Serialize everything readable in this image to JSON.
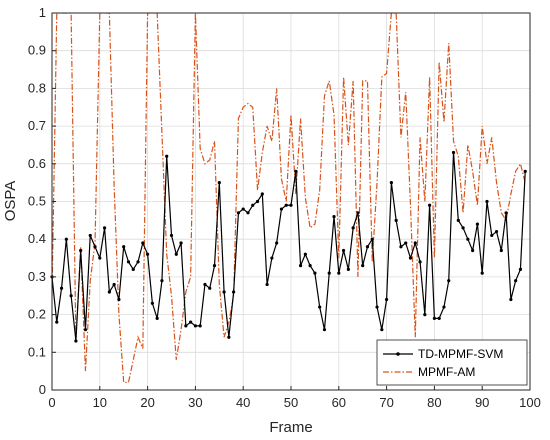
{
  "chart_data": {
    "type": "line",
    "title": "",
    "xlabel": "Frame",
    "ylabel": "OSPA",
    "xlim": [
      0,
      100
    ],
    "ylim": [
      0,
      1
    ],
    "xticks": [
      0,
      10,
      20,
      30,
      40,
      50,
      60,
      70,
      80,
      90,
      100
    ],
    "yticks": [
      0,
      0.1,
      0.2,
      0.3,
      0.4,
      0.5,
      0.6,
      0.7,
      0.8,
      0.9,
      1
    ],
    "grid": true,
    "legend_position": "bottom-right",
    "series": [
      {
        "name": "TD-MPMF-SVM",
        "color": "#000000",
        "style": "solid-dot",
        "x": [
          0,
          1,
          2,
          3,
          4,
          5,
          6,
          7,
          8,
          9,
          10,
          11,
          12,
          13,
          14,
          15,
          16,
          17,
          18,
          19,
          20,
          21,
          22,
          23,
          24,
          25,
          26,
          27,
          28,
          29,
          30,
          31,
          32,
          33,
          34,
          35,
          36,
          37,
          38,
          39,
          40,
          41,
          42,
          43,
          44,
          45,
          46,
          47,
          48,
          49,
          50,
          51,
          52,
          53,
          54,
          55,
          56,
          57,
          58,
          59,
          60,
          61,
          62,
          63,
          64,
          65,
          66,
          67,
          68,
          69,
          70,
          71,
          72,
          73,
          74,
          75,
          76,
          77,
          78,
          79,
          80,
          81,
          82,
          83,
          84,
          85,
          86,
          87,
          88,
          89,
          90,
          91,
          92,
          93,
          94,
          95,
          96,
          97,
          98,
          99
        ],
        "y": [
          0.3,
          0.18,
          0.27,
          0.4,
          0.25,
          0.13,
          0.37,
          0.16,
          0.41,
          0.38,
          0.35,
          0.43,
          0.26,
          0.28,
          0.24,
          0.38,
          0.34,
          0.32,
          0.34,
          0.39,
          0.36,
          0.23,
          0.19,
          0.29,
          0.62,
          0.41,
          0.36,
          0.39,
          0.17,
          0.18,
          0.17,
          0.17,
          0.28,
          0.27,
          0.33,
          0.55,
          0.26,
          0.14,
          0.26,
          0.47,
          0.48,
          0.47,
          0.49,
          0.5,
          0.52,
          0.28,
          0.35,
          0.39,
          0.48,
          0.49,
          0.49,
          0.58,
          0.33,
          0.36,
          0.33,
          0.31,
          0.22,
          0.16,
          0.31,
          0.46,
          0.31,
          0.37,
          0.32,
          0.43,
          0.47,
          0.33,
          0.38,
          0.4,
          0.22,
          0.16,
          0.24,
          0.55,
          0.45,
          0.38,
          0.39,
          0.35,
          0.39,
          0.34,
          0.2,
          0.49,
          0.19,
          0.19,
          0.22,
          0.29,
          0.63,
          0.45,
          0.43,
          0.4,
          0.37,
          0.44,
          0.31,
          0.5,
          0.41,
          0.42,
          0.37,
          0.47,
          0.24,
          0.29,
          0.32,
          0.58
        ]
      },
      {
        "name": "MPMF-AM",
        "color": "#d95319",
        "style": "dash-dot",
        "x": [
          0,
          1,
          2,
          3,
          4,
          5,
          6,
          7,
          8,
          9,
          10,
          11,
          12,
          13,
          14,
          15,
          16,
          17,
          18,
          19,
          20,
          21,
          22,
          23,
          24,
          25,
          26,
          27,
          28,
          29,
          30,
          31,
          32,
          33,
          34,
          35,
          36,
          37,
          38,
          39,
          40,
          41,
          42,
          43,
          44,
          45,
          46,
          47,
          48,
          49,
          50,
          51,
          52,
          53,
          54,
          55,
          56,
          57,
          58,
          59,
          60,
          61,
          62,
          63,
          64,
          65,
          66,
          67,
          68,
          69,
          70,
          71,
          72,
          73,
          74,
          75,
          76,
          77,
          78,
          79,
          80,
          81,
          82,
          83,
          84,
          85,
          86,
          87,
          88,
          89,
          90,
          91,
          92,
          93,
          94,
          95,
          96,
          97,
          98,
          99
        ],
        "y": [
          0.25,
          1,
          1,
          1,
          1,
          0.13,
          0.38,
          0.05,
          0.29,
          0.39,
          1,
          1,
          1,
          0.54,
          0.2,
          0.02,
          0.02,
          0.08,
          0.14,
          0.11,
          1,
          1,
          1,
          0.68,
          0.36,
          0.25,
          0.08,
          0.16,
          0.26,
          0.3,
          1,
          0.64,
          0.6,
          0.61,
          0.66,
          0.28,
          0.14,
          0.18,
          0.25,
          0.72,
          0.75,
          0.76,
          0.75,
          0.53,
          0.63,
          0.7,
          0.66,
          0.8,
          0.56,
          0.5,
          0.73,
          0.52,
          0.72,
          0.51,
          0.43,
          0.44,
          0.53,
          0.78,
          0.82,
          0.73,
          0.35,
          0.83,
          0.65,
          0.82,
          0.3,
          0.82,
          0.82,
          0.34,
          0.55,
          0.83,
          0.84,
          1,
          1,
          0.67,
          0.79,
          0.49,
          0.14,
          0.67,
          0.5,
          0.83,
          0.35,
          0.87,
          0.71,
          0.92,
          0.66,
          0.62,
          0.47,
          0.65,
          0.58,
          0.49,
          0.7,
          0.6,
          0.67,
          0.55,
          0.47,
          0.45,
          0.52,
          0.58,
          0.6,
          0.55
        ]
      }
    ]
  }
}
